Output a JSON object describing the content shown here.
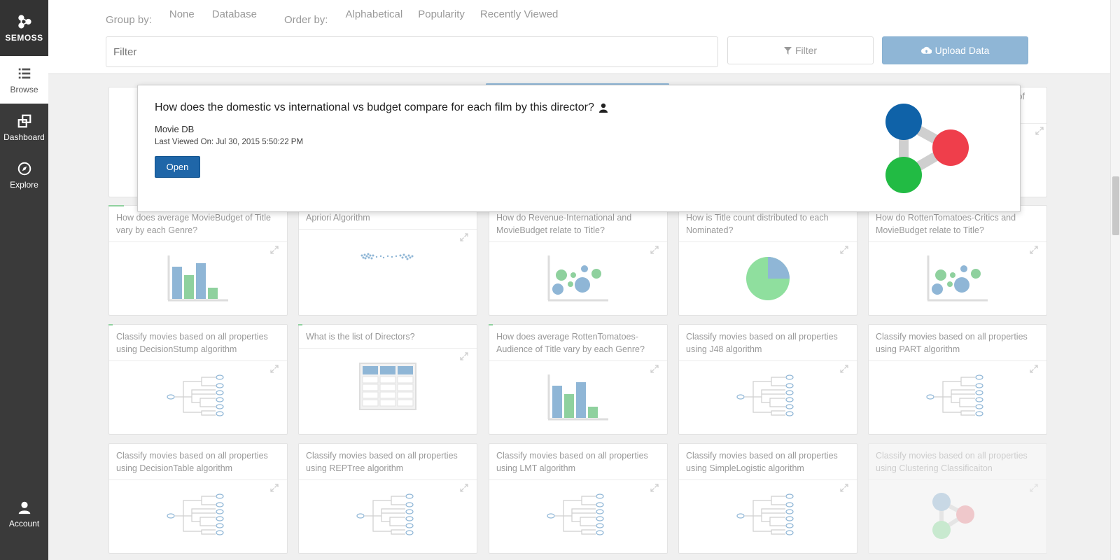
{
  "sidebar": {
    "brand": "SEMOSS",
    "items": [
      {
        "label": "Browse",
        "icon": "list-icon",
        "active": true
      },
      {
        "label": "Dashboard",
        "icon": "windows-icon",
        "active": false
      },
      {
        "label": "Explore",
        "icon": "compass-icon",
        "active": false
      }
    ],
    "account": "Account"
  },
  "toolbar": {
    "group_by_label": "Group by:",
    "group_options": [
      "None",
      "Database"
    ],
    "group_selected": "Database",
    "order_by_label": "Order by:",
    "order_options": [
      "Alphabetical",
      "Popularity",
      "Recently Viewed"
    ],
    "order_selected": "Popularity",
    "filter_placeholder": "Filter",
    "filter_button": "Filter",
    "upload_button": "Upload Data"
  },
  "popover": {
    "question": "How does the domestic vs international vs budget compare for each film by this director?",
    "database": "Movie DB",
    "last_viewed": "Last Viewed On: Jul 30, 2015 5:50:22 PM",
    "open_button": "Open",
    "colors": {
      "blue": "#0f62a8",
      "red": "#ef3e4b",
      "green": "#22bb44"
    }
  },
  "partial_text": "ic of",
  "cards_row1": [
    {
      "title": "How does average MovieBudget of Title vary by each Genre?",
      "thumb": "bar"
    },
    {
      "title": "Apriori Algorithm",
      "thumb": "dots"
    },
    {
      "title": "How do Revenue-International and MovieBudget relate to Title?",
      "thumb": "bubble"
    },
    {
      "title": "How is Title count distributed to each Nominated?",
      "thumb": "pie"
    },
    {
      "title": "How do RottenTomatoes-Critics and MovieBudget relate to Title?",
      "thumb": "bubble"
    }
  ],
  "cards_row2": [
    {
      "title": "Classify movies based on all properties using DecisionStump algorithm",
      "thumb": "tree"
    },
    {
      "title": "What is the list of Directors?",
      "thumb": "table"
    },
    {
      "title": "How does average RottenTomatoes-Audience of Title vary by each Genre?",
      "thumb": "bar"
    },
    {
      "title": "Classify movies based on all properties using J48 algorithm",
      "thumb": "tree"
    },
    {
      "title": "Classify movies based on all properties using PART algorithm",
      "thumb": "tree"
    }
  ],
  "cards_row3": [
    {
      "title": "Classify movies based on all properties using DecisionTable algorithm",
      "thumb": "tree"
    },
    {
      "title": "Classify movies based on all properties using REPTree algorithm",
      "thumb": "tree"
    },
    {
      "title": "Classify movies based on all properties using LMT algorithm",
      "thumb": "tree"
    },
    {
      "title": "Classify movies based on all properties using SimpleLogistic algorithm",
      "thumb": "tree"
    },
    {
      "title": "Classify movies based on all properties using Clustering Classificaiton",
      "thumb": "cluster"
    }
  ]
}
